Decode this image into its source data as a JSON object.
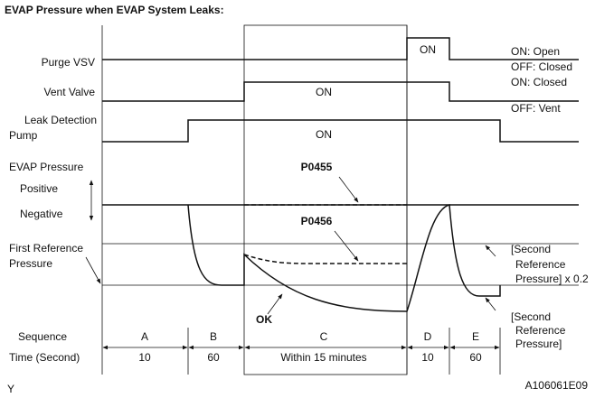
{
  "title": "EVAP Pressure when EVAP System Leaks:",
  "left_labels": {
    "purge_vsv": "Purge VSV",
    "vent_valve": "Vent Valve",
    "pump": [
      "Leak Detection",
      "Pump"
    ],
    "evap_pressure": "EVAP Pressure",
    "positive": "Positive",
    "negative": "Negative",
    "first_reference": [
      "First Reference",
      "Pressure"
    ],
    "sequence": "Sequence",
    "time": "Time (Second)"
  },
  "right_labels": {
    "purge_on": "ON: Open",
    "purge_off": "OFF: Closed",
    "vent_on": "ON: Closed",
    "vent_off": "OFF: Vent",
    "second_ref_02": [
      "[Second",
      "Reference",
      "Pressure] x 0.2"
    ],
    "second_ref": [
      "[Second",
      "Reference",
      "Pressure]"
    ]
  },
  "signals": {
    "purge_on": "ON",
    "vent_on": "ON",
    "pump_on": "ON"
  },
  "curves": {
    "p0455": "P0455",
    "p0456": "P0456",
    "ok": "OK"
  },
  "sequence": [
    {
      "label": "A",
      "time": "10"
    },
    {
      "label": "B",
      "time": "60"
    },
    {
      "label": "C",
      "time": "Within 15 minutes"
    },
    {
      "label": "D",
      "time": "10"
    },
    {
      "label": "E",
      "time": "60"
    }
  ],
  "footer": {
    "mark": "Y",
    "code": "A106061E09"
  }
}
